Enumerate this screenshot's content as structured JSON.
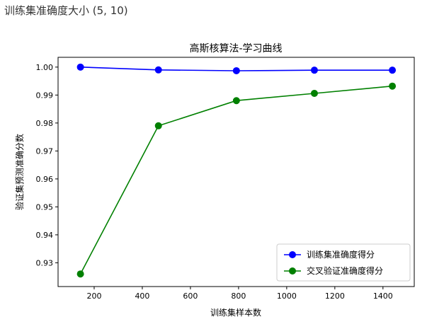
{
  "top_text": "训练集准确度大小 (5, 10)",
  "chart_data": {
    "type": "line",
    "title": "高斯核算法-学习曲线",
    "xlabel": "训练集样本数",
    "ylabel": "验证集预测准确分数",
    "xlim": [
      50,
      1530
    ],
    "ylim": [
      0.9215,
      1.0035
    ],
    "xticks": [
      200,
      400,
      600,
      800,
      1000,
      1200,
      1400
    ],
    "yticks": [
      0.93,
      0.94,
      0.95,
      0.96,
      0.97,
      0.98,
      0.99,
      1.0
    ],
    "ytick_labels": [
      "0.93",
      "0.94",
      "0.95",
      "0.96",
      "0.97",
      "0.98",
      "0.99",
      "1.00"
    ],
    "grid": false,
    "legend_position": "lower-right",
    "x": [
      143,
      467,
      791,
      1115,
      1439
    ],
    "series": [
      {
        "name": "训练集准确度得分",
        "color": "#0000ff",
        "values": [
          1.0,
          0.999,
          0.9987,
          0.9989,
          0.9989
        ]
      },
      {
        "name": "交叉验证准确度得分",
        "color": "#008000",
        "values": [
          0.926,
          0.979,
          0.988,
          0.9906,
          0.9932
        ]
      }
    ]
  }
}
